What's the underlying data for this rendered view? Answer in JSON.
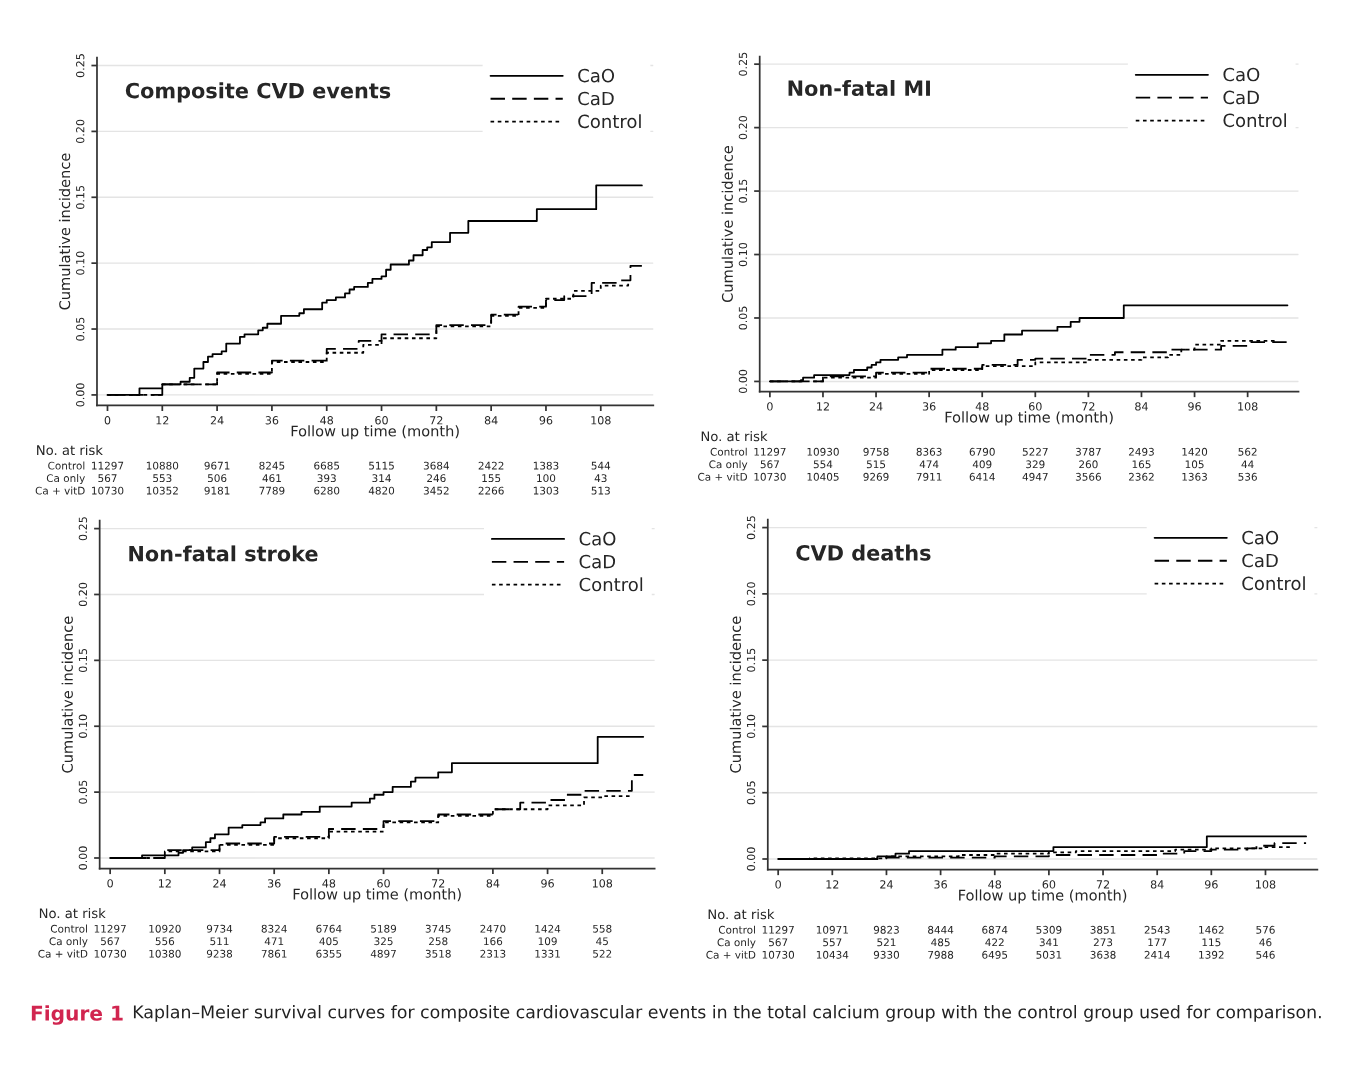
{
  "chart_data": [
    {
      "type": "step",
      "title": "Composite CVD events",
      "xlabel": "Follow up time (month)",
      "ylabel": "Cumulative incidence",
      "xlim": [
        -2.3,
        119.5
      ],
      "ylim": [
        -0.008,
        0.256
      ],
      "xticks": [
        0,
        12,
        24,
        36,
        48,
        60,
        72,
        84,
        96,
        108
      ],
      "yticks": [
        {
          "value": 0,
          "label": "0.00"
        },
        {
          "value": 0.05,
          "label": "0.05"
        },
        {
          "value": 0.1,
          "label": "0.10"
        },
        {
          "value": 0.15,
          "label": "0.15"
        },
        {
          "value": 0.2,
          "label": "0.20"
        },
        {
          "value": 0.25,
          "label": "0.25"
        }
      ],
      "grid": "y",
      "legend": "top right",
      "series": [
        {
          "name": "CaO",
          "color": "#000000",
          "line_style": "solid",
          "x": [
            0,
            7,
            12,
            16,
            18,
            19,
            21,
            22,
            23,
            25,
            26,
            29,
            30,
            33,
            34,
            35,
            38,
            42,
            43,
            47,
            48,
            50,
            52,
            53,
            54,
            57,
            58,
            60,
            61,
            62,
            66,
            67,
            69,
            70,
            71,
            75,
            79,
            94,
            107,
            117
          ],
          "values": [
            0,
            0.005,
            0.008,
            0.01,
            0.013,
            0.02,
            0.025,
            0.029,
            0.031,
            0.033,
            0.039,
            0.044,
            0.046,
            0.049,
            0.051,
            0.054,
            0.06,
            0.062,
            0.065,
            0.07,
            0.072,
            0.074,
            0.077,
            0.08,
            0.082,
            0.085,
            0.088,
            0.09,
            0.095,
            0.099,
            0.102,
            0.106,
            0.11,
            0.112,
            0.116,
            0.123,
            0.132,
            0.141,
            0.159,
            0.159
          ]
        },
        {
          "name": "CaD",
          "color": "#000000",
          "line_style": "dashed",
          "x": [
            0,
            12,
            24,
            36,
            48,
            55,
            60,
            72,
            84,
            90,
            96,
            100,
            106,
            112,
            114.5,
            117
          ],
          "values": [
            0,
            0.008,
            0.017,
            0.026,
            0.035,
            0.041,
            0.046,
            0.053,
            0.061,
            0.067,
            0.072,
            0.075,
            0.085,
            0.087,
            0.098,
            0.098
          ]
        },
        {
          "name": "Control",
          "color": "#000000",
          "line_style": "dotted",
          "x": [
            0,
            12,
            24,
            36,
            48,
            56,
            60,
            72,
            84,
            90,
            96,
            102,
            108,
            114
          ],
          "values": [
            0,
            0.008,
            0.016,
            0.025,
            0.032,
            0.038,
            0.043,
            0.052,
            0.06,
            0.066,
            0.073,
            0.079,
            0.083,
            0.085
          ]
        }
      ],
      "annotations": [
        "No. at risk",
        "Control",
        "11297",
        "10880",
        "9671",
        "8245",
        "6685",
        "5115",
        "3684",
        "2422",
        "1383",
        "544",
        "Ca only",
        "567",
        "553",
        "506",
        "461",
        "393",
        "314",
        "246",
        "155",
        "100",
        "43",
        "Ca + vitD",
        "10730",
        "10352",
        "9181",
        "7789",
        "6280",
        "4820",
        "3452",
        "2266",
        "1303",
        "513",
        "Figure 1",
        "Kaplan–Meier survival curves for composite cardiovascular events in the total calcium group with the control group used for comparison."
      ]
    },
    {
      "type": "step",
      "title": "Non-fatal MI",
      "xlabel": "Follow up time (month)",
      "ylabel": "Cumulative incidence",
      "xlim": [
        -2.3,
        119.5
      ],
      "ylim": [
        -0.008,
        0.256
      ],
      "xticks": [
        0,
        12,
        24,
        36,
        48,
        60,
        72,
        84,
        96,
        108
      ],
      "yticks": [
        {
          "value": 0,
          "label": "0.00"
        },
        {
          "value": 0.05,
          "label": "0.05"
        },
        {
          "value": 0.1,
          "label": "0.10"
        },
        {
          "value": 0.15,
          "label": "0.15"
        },
        {
          "value": 0.2,
          "label": "0.20"
        },
        {
          "value": 0.25,
          "label": "0.25"
        }
      ],
      "grid": "y",
      "legend": "top right",
      "series": [
        {
          "name": "CaO",
          "color": "#000000",
          "line_style": "solid",
          "x": [
            0,
            7,
            7.5,
            10,
            18,
            19,
            22,
            23,
            24,
            25,
            29,
            31,
            39,
            42,
            47,
            50,
            53,
            57,
            65,
            68,
            70,
            80,
            117
          ],
          "values": [
            0,
            0.001,
            0.003,
            0.005,
            0.007,
            0.009,
            0.011,
            0.013,
            0.015,
            0.017,
            0.019,
            0.021,
            0.025,
            0.027,
            0.03,
            0.032,
            0.037,
            0.04,
            0.043,
            0.047,
            0.05,
            0.06,
            0.06
          ]
        },
        {
          "name": "CaD",
          "color": "#000000",
          "line_style": "dashed",
          "x": [
            0,
            12,
            24,
            36,
            48,
            56,
            60,
            72,
            78,
            90,
            96,
            102,
            108,
            117
          ],
          "values": [
            0,
            0.004,
            0.007,
            0.01,
            0.013,
            0.017,
            0.018,
            0.021,
            0.023,
            0.025,
            0.025,
            0.028,
            0.031,
            0.031
          ]
        },
        {
          "name": "Control",
          "color": "#000000",
          "line_style": "dotted",
          "x": [
            0,
            12,
            24,
            36,
            48,
            60,
            72,
            84,
            90,
            93,
            96,
            102,
            114
          ],
          "values": [
            0,
            0.003,
            0.006,
            0.009,
            0.012,
            0.015,
            0.017,
            0.019,
            0.021,
            0.025,
            0.029,
            0.032,
            0.034
          ]
        }
      ],
      "annotations": [
        "No. at risk",
        "Control",
        "11297",
        "10930",
        "9758",
        "8363",
        "6790",
        "5227",
        "3787",
        "2493",
        "1420",
        "562",
        "Ca only",
        "567",
        "554",
        "515",
        "474",
        "409",
        "329",
        "260",
        "165",
        "105",
        "44",
        "Ca + vitD",
        "10730",
        "10405",
        "9269",
        "7911",
        "6414",
        "4947",
        "3566",
        "2362",
        "1363",
        "536"
      ]
    },
    {
      "type": "step",
      "title": "Non-fatal stroke",
      "xlabel": "Follow up time (month)",
      "ylabel": "Cumulative incidence",
      "xlim": [
        -2.3,
        119.5
      ],
      "ylim": [
        -0.008,
        0.256
      ],
      "xticks": [
        0,
        12,
        24,
        36,
        48,
        60,
        72,
        84,
        96,
        108
      ],
      "yticks": [
        {
          "value": 0,
          "label": "0.00"
        },
        {
          "value": 0.05,
          "label": "0.05"
        },
        {
          "value": 0.1,
          "label": "0.10"
        },
        {
          "value": 0.15,
          "label": "0.15"
        },
        {
          "value": 0.2,
          "label": "0.20"
        },
        {
          "value": 0.25,
          "label": "0.25"
        }
      ],
      "grid": "y",
      "legend": "top right",
      "series": [
        {
          "name": "CaO",
          "color": "#000000",
          "line_style": "solid",
          "x": [
            0,
            7,
            15,
            16,
            18,
            21,
            22,
            23,
            26,
            29,
            33,
            34,
            38,
            42,
            46,
            53,
            57,
            58,
            60,
            62,
            66,
            67,
            72,
            75,
            107,
            117
          ],
          "values": [
            0,
            0.002,
            0.004,
            0.006,
            0.008,
            0.012,
            0.015,
            0.018,
            0.023,
            0.025,
            0.027,
            0.03,
            0.033,
            0.035,
            0.039,
            0.042,
            0.045,
            0.048,
            0.05,
            0.054,
            0.058,
            0.061,
            0.065,
            0.072,
            0.092,
            0.092
          ]
        },
        {
          "name": "CaD",
          "color": "#000000",
          "line_style": "dashed",
          "x": [
            0,
            12,
            24,
            36,
            48,
            60,
            72,
            84,
            90,
            96,
            100,
            104,
            114.5,
            117
          ],
          "values": [
            0,
            0.006,
            0.011,
            0.016,
            0.022,
            0.028,
            0.033,
            0.037,
            0.042,
            0.044,
            0.048,
            0.051,
            0.063,
            0.063
          ]
        },
        {
          "name": "Control",
          "color": "#000000",
          "line_style": "dotted",
          "x": [
            0,
            12,
            24,
            36,
            48,
            60,
            72,
            84,
            96,
            104,
            108,
            114
          ],
          "values": [
            0,
            0.005,
            0.01,
            0.015,
            0.02,
            0.027,
            0.032,
            0.037,
            0.04,
            0.046,
            0.047,
            0.047
          ]
        }
      ],
      "annotations": [
        "No. at risk",
        "Control",
        "11297",
        "10920",
        "9734",
        "8324",
        "6764",
        "5189",
        "3745",
        "2470",
        "1424",
        "558",
        "Ca only",
        "567",
        "556",
        "511",
        "471",
        "405",
        "325",
        "258",
        "166",
        "109",
        "45",
        "Ca + vitD",
        "10730",
        "10380",
        "9238",
        "7861",
        "6355",
        "4897",
        "3518",
        "2313",
        "1331",
        "522"
      ]
    },
    {
      "type": "step",
      "title": "CVD deaths",
      "xlabel": "Follow up time (month)",
      "ylabel": "Cumulative incidence",
      "xlim": [
        -2.3,
        119.5
      ],
      "ylim": [
        -0.008,
        0.256
      ],
      "xticks": [
        0,
        12,
        24,
        36,
        48,
        60,
        72,
        84,
        96,
        108
      ],
      "yticks": [
        {
          "value": 0,
          "label": "0.00"
        },
        {
          "value": 0.05,
          "label": "0.05"
        },
        {
          "value": 0.1,
          "label": "0.10"
        },
        {
          "value": 0.15,
          "label": "0.15"
        },
        {
          "value": 0.2,
          "label": "0.20"
        },
        {
          "value": 0.25,
          "label": "0.25"
        }
      ],
      "grid": "y",
      "legend": "top right",
      "series": [
        {
          "name": "CaO",
          "color": "#000000",
          "line_style": "solid",
          "x": [
            0,
            22,
            26,
            29,
            61,
            95,
            117
          ],
          "values": [
            0,
            0.002,
            0.004,
            0.006,
            0.009,
            0.017,
            0.017
          ]
        },
        {
          "name": "CaD",
          "color": "#000000",
          "line_style": "dashed",
          "x": [
            0,
            22,
            48,
            60,
            84,
            90,
            96,
            104,
            106,
            110,
            117
          ],
          "values": [
            0,
            0.001,
            0.002,
            0.003,
            0.004,
            0.006,
            0.007,
            0.008,
            0.01,
            0.012,
            0.012
          ]
        },
        {
          "name": "Control",
          "color": "#000000",
          "line_style": "dotted",
          "x": [
            0,
            7,
            24,
            40,
            48,
            60,
            66,
            88,
            96,
            108,
            114
          ],
          "values": [
            0,
            0.0005,
            0.002,
            0.003,
            0.004,
            0.005,
            0.006,
            0.007,
            0.008,
            0.009,
            0.009
          ]
        }
      ],
      "annotations": [
        "No. at risk",
        "Control",
        "11297",
        "10971",
        "9823",
        "8444",
        "6874",
        "5309",
        "3851",
        "2543",
        "1462",
        "576",
        "Ca only",
        "567",
        "557",
        "521",
        "485",
        "422",
        "341",
        "273",
        "177",
        "115",
        "46",
        "Ca + vitD",
        "10730",
        "10434",
        "9330",
        "7988",
        "6495",
        "5031",
        "3638",
        "2414",
        "1392",
        "546"
      ]
    }
  ]
}
